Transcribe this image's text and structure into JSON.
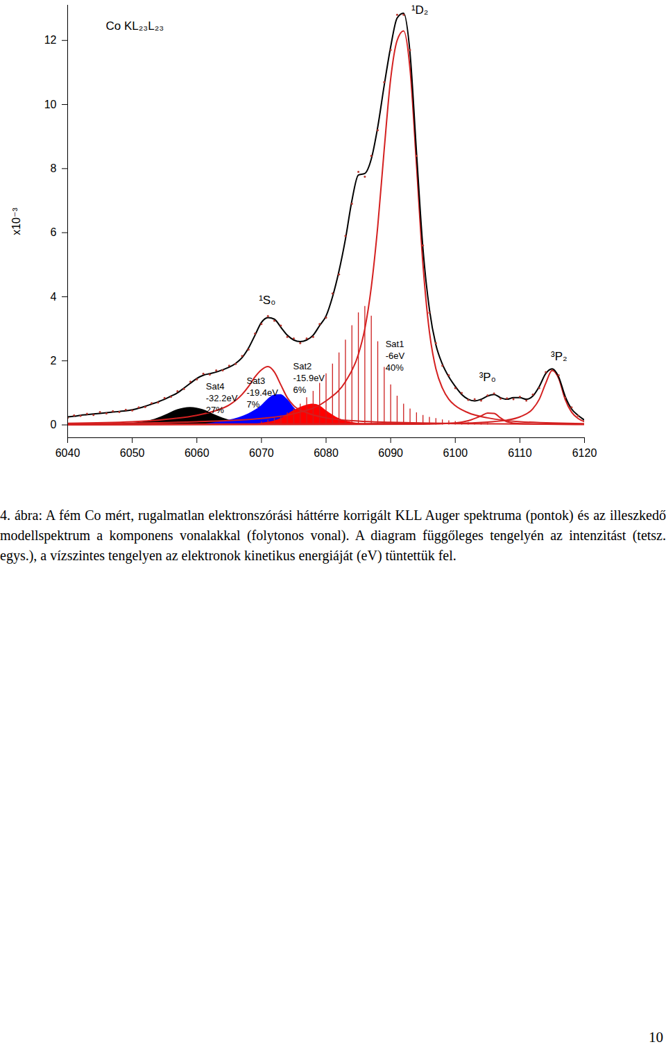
{
  "chart_data": {
    "type": "line",
    "ylabel": "x10⁻³",
    "xlim": [
      6040,
      6120
    ],
    "xticks": [
      6040,
      6050,
      6060,
      6070,
      6080,
      6090,
      6100,
      6110,
      6120
    ],
    "ylim": [
      -0.4,
      13.1
    ],
    "yticks": [
      0,
      2,
      4,
      6,
      8,
      10,
      12
    ],
    "grid": false,
    "series": [
      {
        "type": "area",
        "color": "#000000",
        "x": [
          6047,
          6050,
          6053,
          6055,
          6057,
          6059,
          6061,
          6063,
          6065,
          6067,
          6070
        ],
        "values": [
          0.0,
          0.05,
          0.15,
          0.3,
          0.48,
          0.55,
          0.48,
          0.3,
          0.15,
          0.05,
          0.0
        ]
      },
      {
        "type": "area",
        "color": "#0000ff",
        "x": [
          6060,
          6062,
          6065,
          6068,
          6070,
          6071,
          6072,
          6073,
          6074,
          6075,
          6076,
          6078,
          6080,
          6082
        ],
        "values": [
          0.0,
          0.05,
          0.15,
          0.35,
          0.6,
          0.8,
          0.93,
          0.95,
          0.8,
          0.55,
          0.35,
          0.15,
          0.05,
          0.0
        ]
      },
      {
        "type": "area",
        "color": "#ff0000",
        "x": [
          6068,
          6070,
          6073,
          6075,
          6077,
          6078,
          6079,
          6080,
          6082,
          6084,
          6086
        ],
        "values": [
          0.0,
          0.05,
          0.2,
          0.45,
          0.62,
          0.65,
          0.6,
          0.45,
          0.2,
          0.08,
          0.03
        ]
      },
      {
        "type": "bar",
        "color": "#cc1f1f",
        "x": [
          6070,
          6071,
          6072,
          6073,
          6074,
          6075,
          6076,
          6077,
          6078,
          6079,
          6080,
          6081,
          6082,
          6083,
          6084,
          6085,
          6086,
          6087,
          6088,
          6089,
          6090,
          6091,
          6092,
          6093,
          6094,
          6095,
          6096,
          6097,
          6098,
          6099,
          6100,
          6101,
          6102,
          6103,
          6104,
          6105
        ],
        "values": [
          0.1,
          0.15,
          0.2,
          0.28,
          0.38,
          0.5,
          0.65,
          0.85,
          1.05,
          1.3,
          1.6,
          1.9,
          2.25,
          2.65,
          3.1,
          3.5,
          3.7,
          3.4,
          2.6,
          1.8,
          1.25,
          0.9,
          0.65,
          0.5,
          0.38,
          0.3,
          0.24,
          0.2,
          0.16,
          0.13,
          0.11,
          0.09,
          0.08,
          0.07,
          0.06,
          0.05
        ]
      },
      {
        "type": "line",
        "color": "#d42020",
        "x": [
          6040,
          6050,
          6055,
          6060,
          6063,
          6065,
          6067,
          6068,
          6069,
          6070,
          6071,
          6072,
          6073,
          6074,
          6075,
          6077,
          6080,
          6085,
          6090,
          6100,
          6120
        ],
        "values": [
          0.05,
          0.1,
          0.17,
          0.3,
          0.45,
          0.62,
          0.95,
          1.2,
          1.5,
          1.72,
          1.82,
          1.65,
          1.25,
          0.85,
          0.6,
          0.38,
          0.22,
          0.12,
          0.08,
          0.04,
          0.02
        ]
      },
      {
        "type": "line",
        "color": "#d42020",
        "x": [
          6040,
          6060,
          6070,
          6075,
          6080,
          6083,
          6085,
          6086,
          6087,
          6088,
          6089,
          6090,
          6091,
          6092,
          6093,
          6094,
          6095,
          6096,
          6097,
          6098,
          6099,
          6100,
          6102,
          6105,
          6110,
          6120
        ],
        "values": [
          0.03,
          0.1,
          0.2,
          0.35,
          0.75,
          1.35,
          2.2,
          3.0,
          4.3,
          6.2,
          8.6,
          10.8,
          12.0,
          12.3,
          11.1,
          8.1,
          5.0,
          2.9,
          1.75,
          1.15,
          0.8,
          0.6,
          0.38,
          0.22,
          0.1,
          0.04
        ]
      },
      {
        "type": "line",
        "color": "#d42020",
        "x": [
          6040,
          6095,
          6100,
          6102,
          6104,
          6105,
          6106,
          6107,
          6108,
          6110,
          6120
        ],
        "values": [
          0.0,
          0.02,
          0.06,
          0.13,
          0.28,
          0.37,
          0.36,
          0.22,
          0.1,
          0.04,
          0.01
        ]
      },
      {
        "type": "line",
        "color": "#d42020",
        "x": [
          6040,
          6100,
          6105,
          6108,
          6110,
          6112,
          6113,
          6114,
          6115,
          6116,
          6117,
          6118,
          6119,
          6120
        ],
        "values": [
          0.01,
          0.05,
          0.09,
          0.15,
          0.25,
          0.5,
          0.8,
          1.3,
          1.7,
          1.45,
          0.8,
          0.4,
          0.2,
          0.1
        ]
      },
      {
        "type": "line",
        "color": "#000000",
        "x": [
          6040,
          6041,
          6042,
          6043,
          6044,
          6045,
          6046,
          6047,
          6048,
          6049,
          6050,
          6051,
          6052,
          6053,
          6054,
          6055,
          6056,
          6057,
          6058,
          6059,
          6060,
          6061,
          6062,
          6063,
          6064,
          6065,
          6066,
          6067,
          6068,
          6069,
          6070,
          6071,
          6072,
          6073,
          6074,
          6075,
          6076,
          6077,
          6078,
          6079,
          6080,
          6081,
          6082,
          6083,
          6084,
          6085,
          6086,
          6087,
          6088,
          6089,
          6090,
          6091,
          6092,
          6093,
          6094,
          6095,
          6096,
          6097,
          6098,
          6099,
          6100,
          6101,
          6102,
          6103,
          6104,
          6105,
          6106,
          6107,
          6108,
          6109,
          6110,
          6111,
          6112,
          6113,
          6114,
          6115,
          6116,
          6117,
          6118,
          6119,
          6120
        ],
        "values": [
          0.25,
          0.27,
          0.3,
          0.32,
          0.34,
          0.36,
          0.38,
          0.4,
          0.42,
          0.44,
          0.47,
          0.52,
          0.58,
          0.65,
          0.72,
          0.8,
          0.9,
          1.0,
          1.15,
          1.3,
          1.45,
          1.55,
          1.6,
          1.65,
          1.72,
          1.8,
          1.92,
          2.1,
          2.4,
          2.8,
          3.2,
          3.35,
          3.3,
          3.05,
          2.8,
          2.65,
          2.6,
          2.65,
          2.8,
          3.1,
          3.4,
          4.0,
          4.8,
          5.8,
          7.0,
          7.8,
          7.85,
          8.3,
          9.3,
          10.6,
          11.8,
          12.7,
          12.85,
          11.6,
          8.5,
          5.5,
          3.6,
          2.5,
          1.9,
          1.5,
          1.2,
          0.95,
          0.8,
          0.75,
          0.8,
          0.9,
          0.95,
          0.85,
          0.8,
          0.85,
          0.85,
          0.8,
          0.9,
          1.2,
          1.6,
          1.75,
          1.5,
          0.9,
          0.5,
          0.3,
          0.15
        ]
      },
      {
        "type": "scatter",
        "color": "#b5332b",
        "marker": "dot",
        "x": [
          6040,
          6041,
          6042,
          6043,
          6044,
          6045,
          6046,
          6047,
          6048,
          6049,
          6050,
          6051,
          6052,
          6053,
          6054,
          6055,
          6056,
          6057,
          6058,
          6059,
          6060,
          6061,
          6062,
          6063,
          6064,
          6065,
          6066,
          6067,
          6068,
          6069,
          6070,
          6071,
          6072,
          6073,
          6074,
          6075,
          6076,
          6077,
          6078,
          6079,
          6080,
          6081,
          6082,
          6083,
          6084,
          6085,
          6086,
          6087,
          6088,
          6089,
          6090,
          6091,
          6092,
          6093,
          6094,
          6095,
          6096,
          6097,
          6098,
          6099,
          6100,
          6101,
          6102,
          6103,
          6104,
          6105,
          6106,
          6107,
          6108,
          6109,
          6110,
          6111,
          6112,
          6113,
          6114,
          6115,
          6116,
          6117,
          6118,
          6119,
          6120
        ],
        "values": [
          0.22,
          0.3,
          0.28,
          0.35,
          0.31,
          0.4,
          0.36,
          0.43,
          0.4,
          0.47,
          0.45,
          0.55,
          0.56,
          0.68,
          0.7,
          0.84,
          0.88,
          1.05,
          1.12,
          1.35,
          1.42,
          1.6,
          1.57,
          1.7,
          1.7,
          1.85,
          1.9,
          2.15,
          2.35,
          2.85,
          3.15,
          3.4,
          3.25,
          3.1,
          2.75,
          2.7,
          2.55,
          2.7,
          2.75,
          3.15,
          3.35,
          4.1,
          4.7,
          5.9,
          6.9,
          7.9,
          7.75,
          8.4,
          9.2,
          10.7,
          11.7,
          12.8,
          12.8,
          11.7,
          8.4,
          5.6,
          3.5,
          2.55,
          1.85,
          1.55,
          1.15,
          1.0,
          0.78,
          0.8,
          0.76,
          0.92,
          0.98,
          0.82,
          0.83,
          0.8,
          0.88,
          0.76,
          0.95,
          1.15,
          1.65,
          1.7,
          1.55,
          0.85,
          0.55,
          0.28,
          0.12
        ]
      }
    ],
    "annotations": [
      {
        "text": [
          "Co KL₂₃L₂₃"
        ],
        "x": 6045.9,
        "y": 12.68
      },
      {
        "text": [
          "¹D₂"
        ],
        "x": 6093.2,
        "y": 13.17
      },
      {
        "text": [
          "¹S₀"
        ],
        "x": 6069.6,
        "y": 4.12
      },
      {
        "text": [
          "³P₀"
        ],
        "x": 6103.7,
        "y": 1.71
      },
      {
        "text": [
          "³P₂"
        ],
        "x": 6114.8,
        "y": 2.36
      },
      {
        "text": [
          "Sat1",
          "-6eV",
          "40%"
        ],
        "x": 6089.2,
        "y": 2.69
      },
      {
        "text": [
          "Sat2",
          "-15.9eV",
          "6%"
        ],
        "x": 6074.9,
        "y": 1.99
      },
      {
        "text": [
          "Sat3",
          "-19.4eV",
          "7%"
        ],
        "x": 6067.7,
        "y": 1.54
      },
      {
        "text": [
          "Sat4",
          "-32.2eV",
          "27%"
        ],
        "x": 6061.4,
        "y": 1.37
      }
    ]
  },
  "caption": "4. ábra: A fém Co mért, rugalmatlan elektronszórási háttérre korrigált KLL Auger spektruma (pontok) és az illeszkedő modellspektrum a komponens vonalakkal (folytonos vonal). A diagram függőleges tengelyén az intenzitást (tetsz. egys.), a vízszintes tengelyen az elektronok kinetikus energiáját (eV) tüntettük fel.",
  "page_number": 10
}
